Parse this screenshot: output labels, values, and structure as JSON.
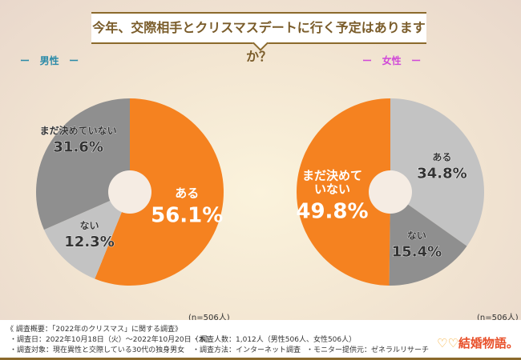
{
  "title": "今年、交際相手とクリスマスデートに行く予定はありますか？",
  "male_label": "男性",
  "female_label": "女性",
  "dash": "ー",
  "chart_data": [
    {
      "type": "pie",
      "name": "男性",
      "note": "(n=506人)",
      "slices": [
        {
          "label": "ある",
          "value": 56.1,
          "color": "#f58220"
        },
        {
          "label": "ない",
          "value": 12.3,
          "color": "#c3c3c3"
        },
        {
          "label": "まだ決めていない",
          "value": 31.6,
          "color": "#8f8f8f"
        }
      ]
    },
    {
      "type": "pie",
      "name": "女性",
      "note": "(n=506人)",
      "slices": [
        {
          "label": "ある",
          "value": 34.8,
          "color": "#c3c3c3"
        },
        {
          "label": "ない",
          "value": 15.4,
          "color": "#8f8f8f"
        },
        {
          "label": "まだ決めていない",
          "value": 49.8,
          "color": "#f58220"
        }
      ]
    }
  ],
  "footer": {
    "overview": "《 調査概要：「2022年のクリスマス」に関する調査》",
    "date": "・調査日：2022年10月18日（火）～2022年10月20日（木）",
    "target": "・調査対象：現在異性と交際している30代の独身男女",
    "count": "・調査人数：1,012人（男性506人、女性506人）",
    "method": "・調査方法：インターネット調査",
    "provider": "・モニター提供元：ゼネラルリサーチ"
  },
  "logo": "結婚物語。"
}
